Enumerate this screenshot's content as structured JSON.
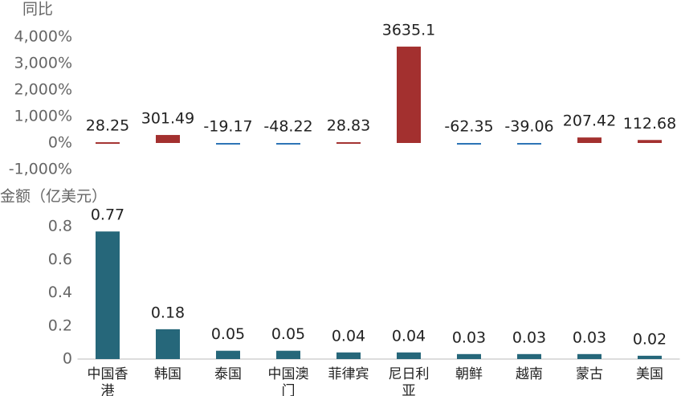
{
  "chart_data": [
    {
      "type": "bar",
      "ylabel": "同比",
      "values": [
        28.25,
        301.49,
        -19.17,
        -48.22,
        28.83,
        3635.1,
        -62.35,
        -39.06,
        207.42,
        112.68
      ],
      "positive_color": "#a3302f",
      "negative_color": "#2e75b6",
      "ylim": [
        -1000,
        4000
      ],
      "yticks": [
        {
          "value": -1000,
          "label": "-1,000%"
        },
        {
          "value": 0,
          "label": "0%"
        },
        {
          "value": 1000,
          "label": "1,000%"
        },
        {
          "value": 2000,
          "label": "2,000%"
        },
        {
          "value": 3000,
          "label": "3,000%"
        },
        {
          "value": 4000,
          "label": "4,000%"
        }
      ]
    },
    {
      "type": "bar",
      "ylabel": "金额（亿美元）",
      "categories": [
        "中国香港",
        "韩国",
        "泰国",
        "中国澳门",
        "菲律宾",
        "尼日利亚",
        "朝鲜",
        "越南",
        "蒙古",
        "美国"
      ],
      "values": [
        0.77,
        0.18,
        0.05,
        0.05,
        0.04,
        0.04,
        0.03,
        0.03,
        0.03,
        0.02
      ],
      "color": "#26677a",
      "ylim": [
        0,
        0.8
      ],
      "yticks": [
        0,
        0.2,
        0.4,
        0.6,
        0.8
      ]
    }
  ]
}
